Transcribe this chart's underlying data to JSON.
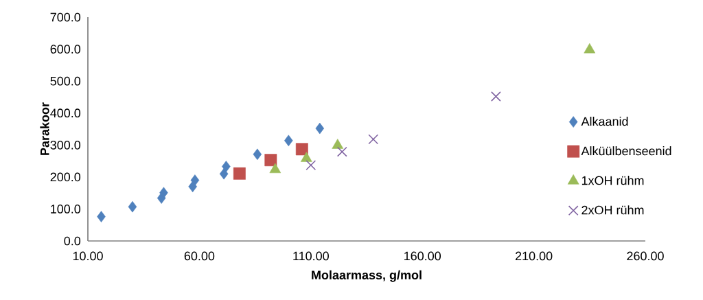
{
  "chart_data": {
    "type": "scatter",
    "xlabel": "Molaarmass, g/mol",
    "ylabel": "Parakoor",
    "xlim": [
      10,
      260
    ],
    "ylim": [
      0,
      700
    ],
    "xticks": [
      {
        "value": 10,
        "label": "10.00"
      },
      {
        "value": 60,
        "label": "60.00"
      },
      {
        "value": 110,
        "label": "110.00"
      },
      {
        "value": 160,
        "label": "160.00"
      },
      {
        "value": 210,
        "label": "210.00"
      },
      {
        "value": 260,
        "label": "260.00"
      }
    ],
    "yticks": [
      {
        "value": 0,
        "label": "0.0"
      },
      {
        "value": 100,
        "label": "100.0"
      },
      {
        "value": 200,
        "label": "200.0"
      },
      {
        "value": 300,
        "label": "300.0"
      },
      {
        "value": 400,
        "label": "400.0"
      },
      {
        "value": 500,
        "label": "500.0"
      },
      {
        "value": 600,
        "label": "600.0"
      },
      {
        "value": 700,
        "label": "700.0"
      }
    ],
    "legend": "right",
    "grid": false,
    "series": [
      {
        "name": "Alkaanid",
        "color": "#4f81bd",
        "marker": "diamond",
        "x": [
          16,
          30,
          43,
          44,
          57,
          58,
          71,
          72,
          86,
          100,
          114
        ],
        "values": [
          76,
          107,
          134,
          151,
          170,
          190,
          210,
          233,
          271,
          314,
          352
        ]
      },
      {
        "name": "Alküülbenseenid",
        "color": "#c0504d",
        "marker": "square",
        "x": [
          78,
          92,
          106
        ],
        "values": [
          211,
          253,
          287
        ]
      },
      {
        "name": "1xOH rühm",
        "color": "#9bbb59",
        "marker": "triangle",
        "x": [
          94,
          108,
          122,
          235
        ],
        "values": [
          223,
          258,
          299,
          598
        ]
      },
      {
        "name": "2xOH rühm",
        "color": "#8064a2",
        "marker": "cross",
        "x": [
          110,
          124,
          138,
          193
        ],
        "values": [
          237,
          279,
          318,
          452
        ]
      }
    ]
  }
}
